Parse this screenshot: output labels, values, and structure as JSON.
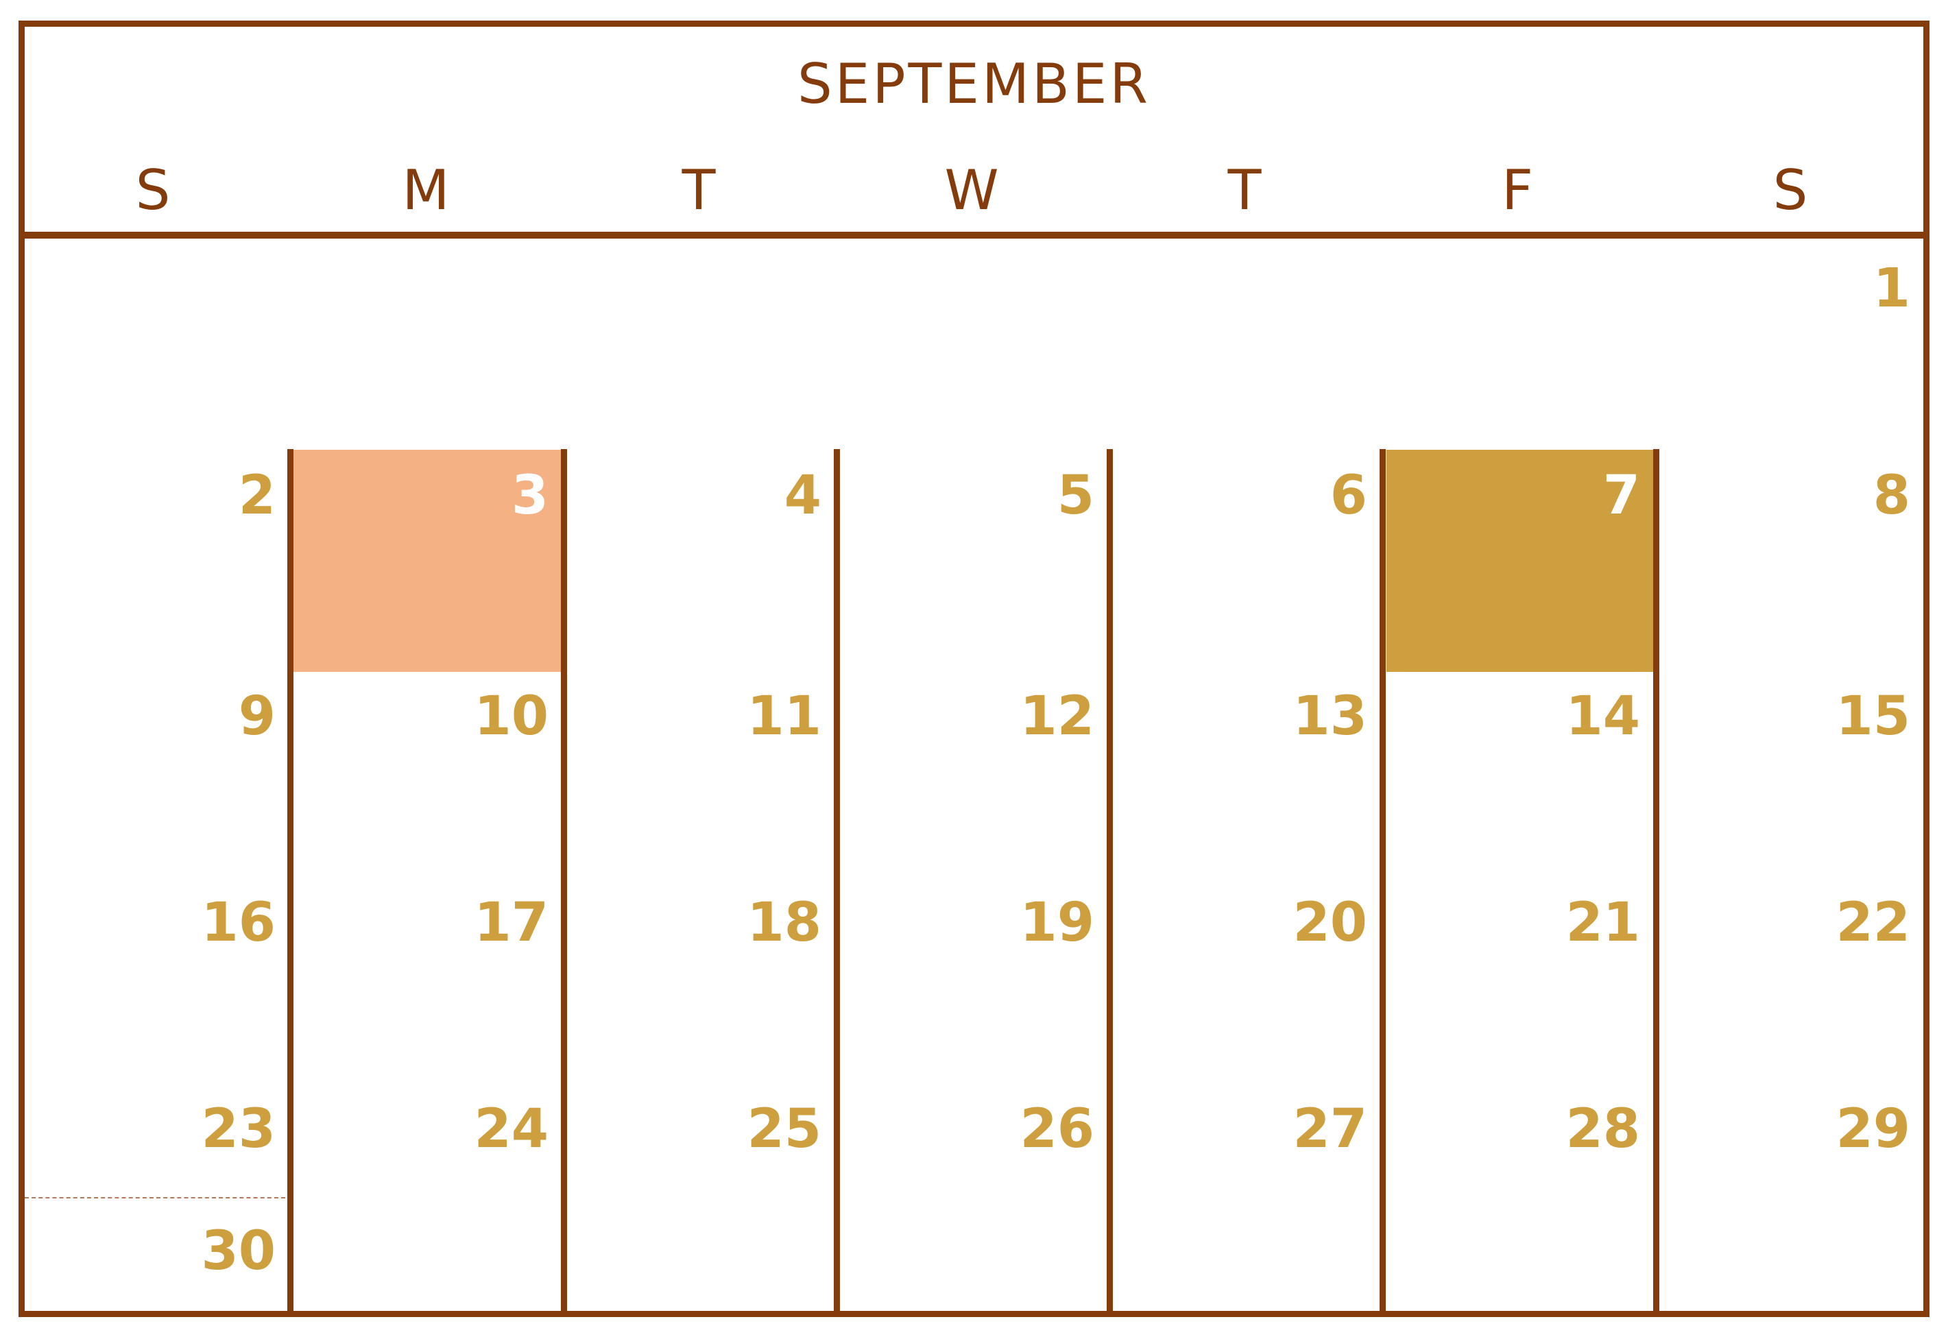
{
  "calendar": {
    "month": "SEPTEMBER",
    "weekdays": [
      "S",
      "M",
      "T",
      "W",
      "T",
      "F",
      "S"
    ],
    "days": [
      "1",
      "2",
      "3",
      "4",
      "5",
      "6",
      "7",
      "8",
      "9",
      "10",
      "11",
      "12",
      "13",
      "14",
      "15",
      "16",
      "17",
      "18",
      "19",
      "20",
      "21",
      "22",
      "23",
      "24",
      "25",
      "26",
      "27",
      "28",
      "29",
      "30"
    ],
    "highlight_colors": {
      "day_3": "#F4B183",
      "day_7": "#CE9F3F"
    },
    "colors": {
      "frame": "#843C0C",
      "day_number": "#CE9F3F",
      "highlight_text": "#FFFFFF"
    }
  }
}
